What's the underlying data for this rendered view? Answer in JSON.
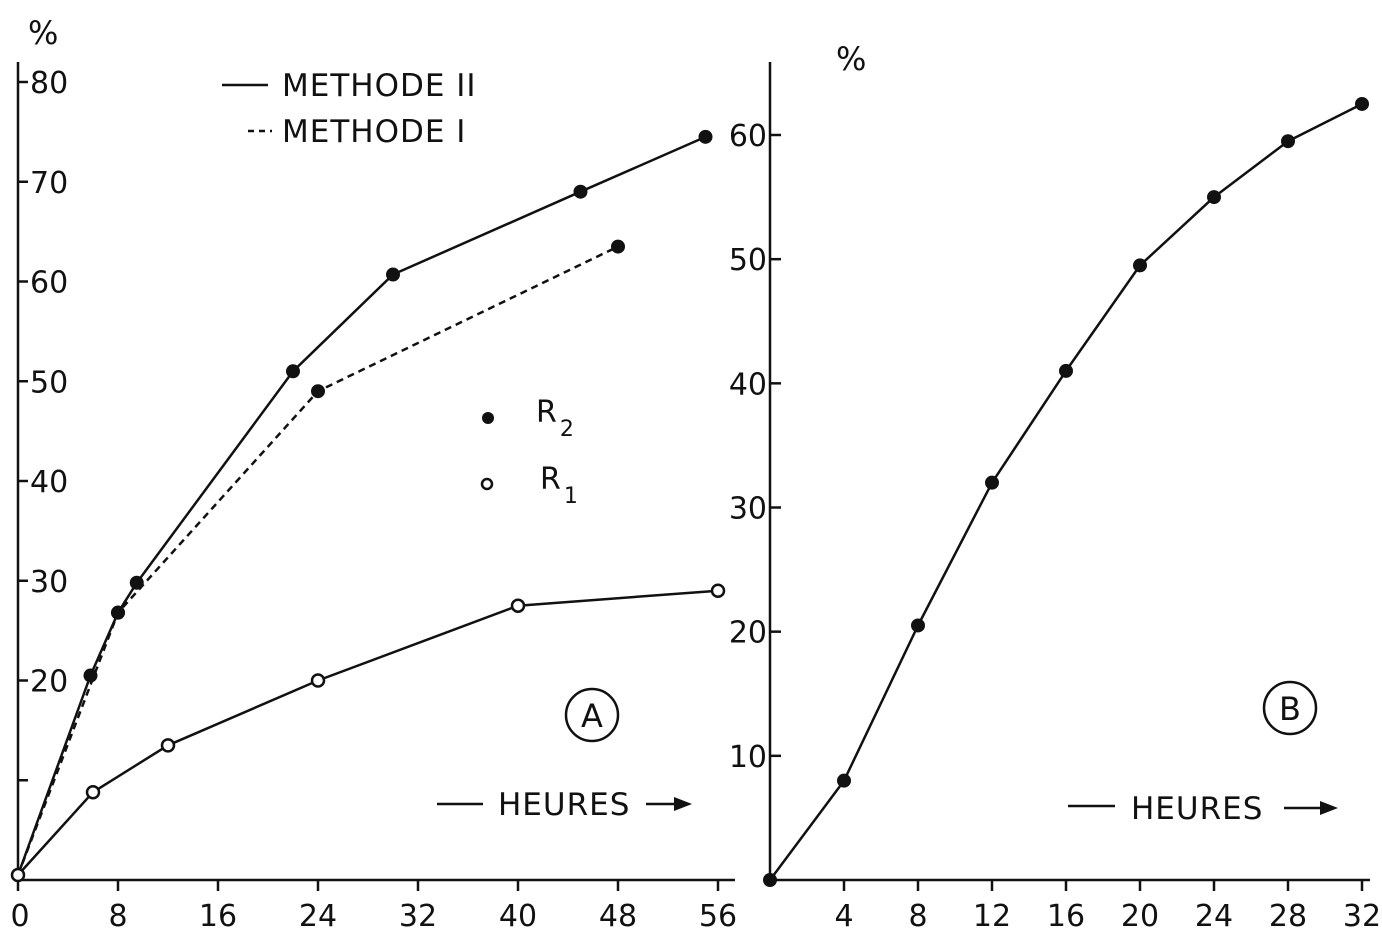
{
  "chart_data": [
    {
      "type": "line",
      "panel_label": "A",
      "ylabel": "%",
      "xlabel": "HEURES",
      "xlim": [
        0,
        56
      ],
      "ylim": [
        0,
        80
      ],
      "xticks": [
        "0",
        "8",
        "16",
        "24",
        "32",
        "40",
        "48",
        "56"
      ],
      "yticks": [
        "",
        "20",
        "30",
        "40",
        "50",
        "60",
        "70",
        "80"
      ],
      "legend": {
        "methods": [
          {
            "label": "METHODE II",
            "style": "solid"
          },
          {
            "label": "METHODE I",
            "style": "dashed"
          }
        ],
        "markers": [
          {
            "base": "R",
            "sub": "2",
            "marker": "filled"
          },
          {
            "base": "R",
            "sub": "1",
            "marker": "open"
          }
        ]
      },
      "series": [
        {
          "marker": "filled",
          "style": "solid",
          "x": [
            0,
            5.8,
            8,
            9.5,
            22,
            30,
            45,
            55
          ],
          "y": [
            0.5,
            20.5,
            26.8,
            29.8,
            51,
            60.7,
            69,
            74.5
          ]
        },
        {
          "marker": "filled",
          "style": "dashed",
          "x": [
            0,
            8,
            24,
            48
          ],
          "y": [
            0.5,
            26.8,
            49,
            63.5
          ]
        },
        {
          "marker": "open",
          "style": "solid",
          "x": [
            0,
            6,
            12,
            24,
            40,
            56
          ],
          "y": [
            0.5,
            8.8,
            13.5,
            20,
            27.5,
            29
          ]
        }
      ]
    },
    {
      "type": "line",
      "panel_label": "B",
      "ylabel": "%",
      "xlabel": "HEURES",
      "xlim": [
        0,
        32
      ],
      "ylim": [
        0,
        60
      ],
      "xticks": [
        "4",
        "8",
        "12",
        "16",
        "20",
        "24",
        "28",
        "32"
      ],
      "yticks": [
        "10",
        "20",
        "30",
        "40",
        "50",
        "60"
      ],
      "series": [
        {
          "marker": "filled",
          "style": "solid",
          "x": [
            0,
            4,
            8,
            12,
            16,
            20,
            24,
            28,
            32
          ],
          "y": [
            0,
            8,
            20.5,
            32,
            41,
            49.5,
            55,
            59.5,
            62.5
          ]
        }
      ]
    }
  ]
}
